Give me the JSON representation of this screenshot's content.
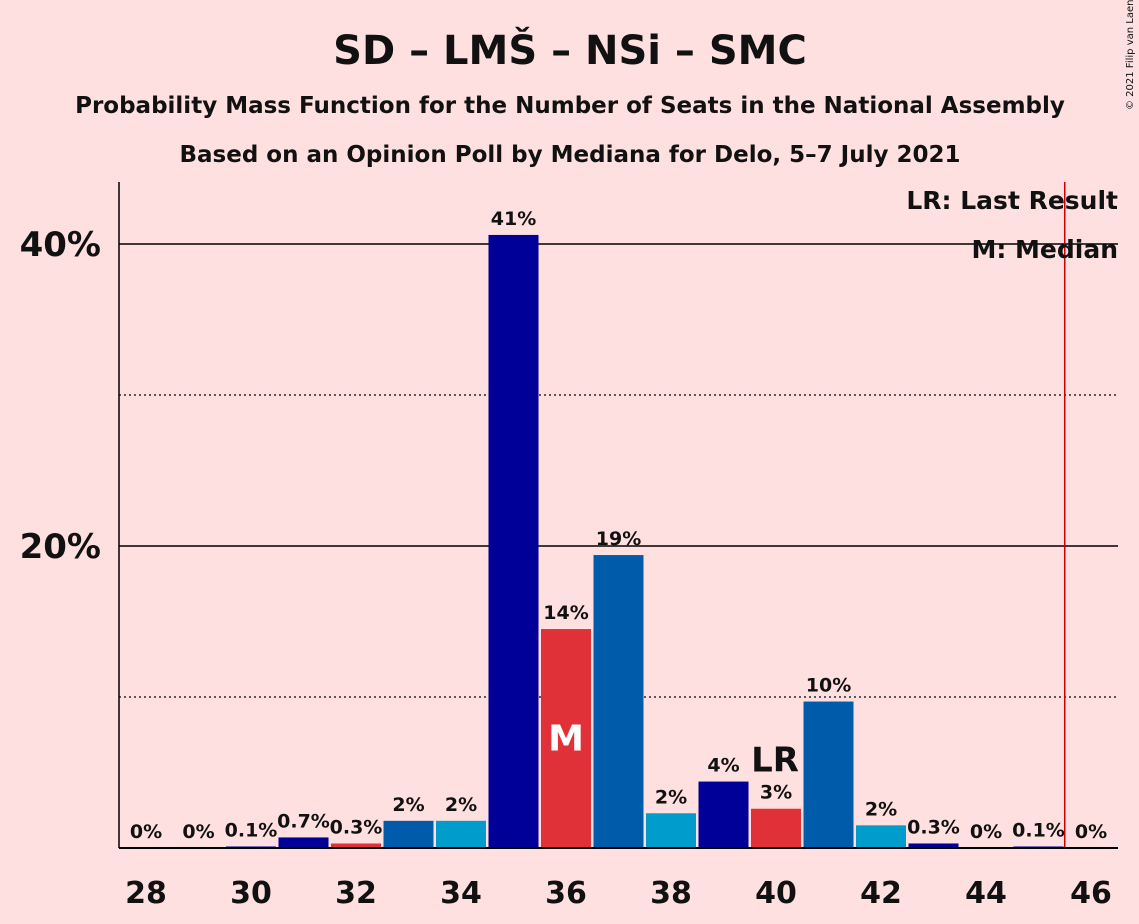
{
  "chart_data": {
    "type": "bar",
    "title": "SD – LMŠ – NSi – SMC",
    "subtitle": "Probability Mass Function for the Number of Seats in the National Assembly",
    "subtitle2": "Based on an Opinion Poll by Mediana for Delo, 5–7 July 2021",
    "copyright": "© 2021 Filip van Laenen",
    "legend": {
      "lr": "LR: Last Result",
      "m": "M: Median",
      "placement": "top-right"
    },
    "x": [
      28,
      29,
      30,
      31,
      32,
      33,
      34,
      35,
      36,
      37,
      38,
      39,
      40,
      41,
      42,
      43,
      44,
      45,
      46
    ],
    "values": [
      0,
      0,
      0.1,
      0.7,
      0.3,
      1.8,
      1.8,
      40.6,
      14.5,
      19.4,
      2.3,
      4.4,
      2.6,
      9.7,
      1.5,
      0.3,
      0,
      0.1,
      0
    ],
    "labels": [
      "0%",
      "0%",
      "0.1%",
      "0.7%",
      "0.3%",
      "2%",
      "2%",
      "41%",
      "14%",
      "19%",
      "2%",
      "4%",
      "3%",
      "10%",
      "2%",
      "0.3%",
      "0%",
      "0.1%",
      "0%"
    ],
    "colors": [
      "#000099",
      "#000099",
      "#000099",
      "#000099",
      "#e03138",
      "#005bab",
      "#009ccc",
      "#000099",
      "#e03138",
      "#005bab",
      "#009ccc",
      "#000099",
      "#e03138",
      "#005bab",
      "#009ccc",
      "#000099",
      "#000099",
      "#000099",
      "#000099"
    ],
    "xticks": [
      "28",
      "30",
      "32",
      "34",
      "36",
      "38",
      "40",
      "42",
      "44",
      "46"
    ],
    "yticks": [
      {
        "value": 20,
        "label": "20%"
      },
      {
        "value": 40,
        "label": "40%"
      }
    ],
    "ylim": [
      0,
      44
    ],
    "median_seat": 36,
    "median_mark": "M",
    "last_result_seat": 40,
    "last_result_mark": "LR",
    "majority_line": 45.5,
    "majority_color": "#cc0000"
  }
}
